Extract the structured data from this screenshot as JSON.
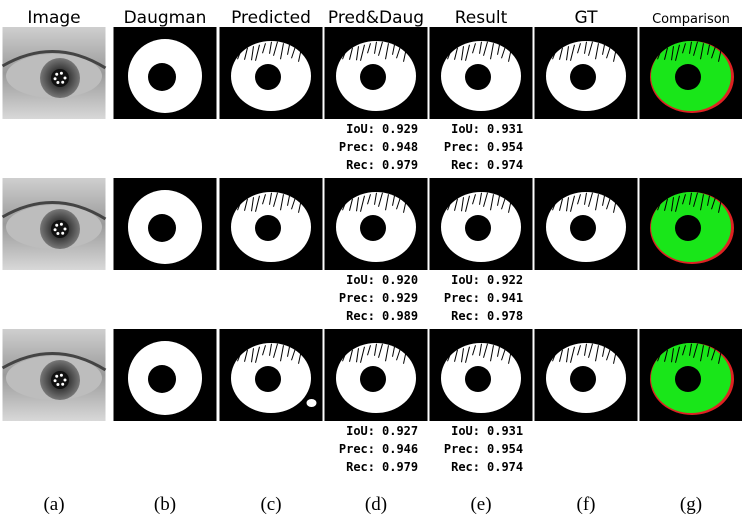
{
  "header": {
    "columns": [
      "Image",
      "Daugman",
      "Predicted",
      "Pred&Daug",
      "Result",
      "GT",
      "Comparison"
    ]
  },
  "metric_labels": [
    "IoU:",
    "Prec:",
    "Rec:"
  ],
  "rows": [
    {
      "pred_daug": [
        "0.929",
        "0.948",
        "0.979"
      ],
      "result": [
        "0.931",
        "0.954",
        "0.974"
      ]
    },
    {
      "pred_daug": [
        "0.920",
        "0.929",
        "0.989"
      ],
      "result": [
        "0.922",
        "0.941",
        "0.978"
      ]
    },
    {
      "pred_daug": [
        "0.927",
        "0.946",
        "0.979"
      ],
      "result": [
        "0.931",
        "0.954",
        "0.974"
      ]
    }
  ],
  "captions": [
    "(a)",
    "(b)",
    "(c)",
    "(d)",
    "(e)",
    "(f)",
    "(g)"
  ]
}
